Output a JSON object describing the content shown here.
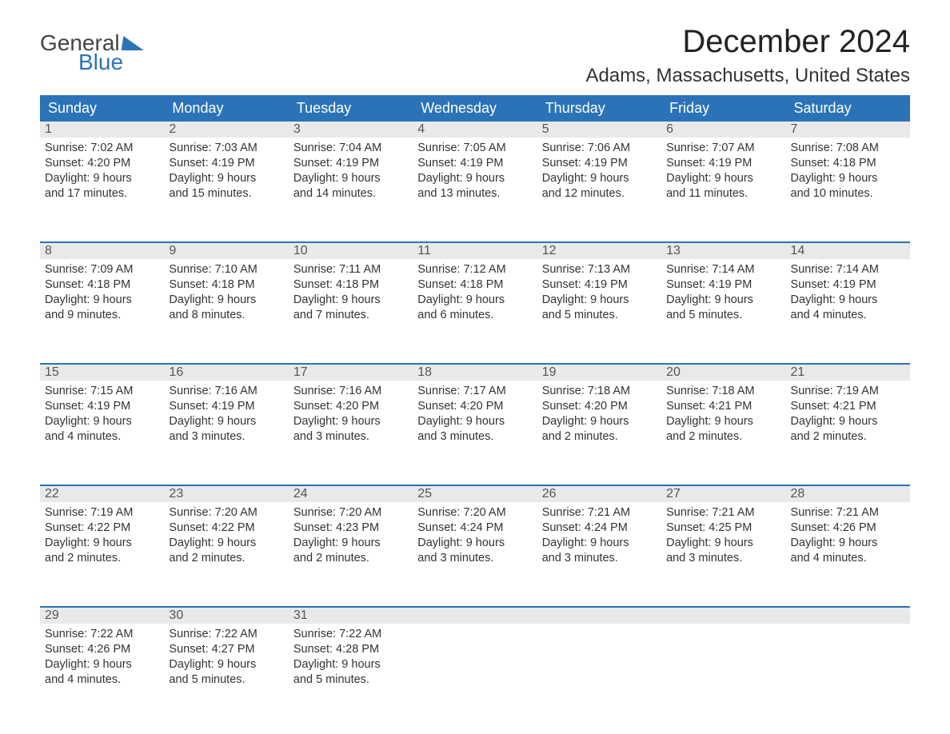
{
  "logo": {
    "text1": "General",
    "text2": "Blue"
  },
  "title": "December 2024",
  "location": "Adams, Massachusetts, United States",
  "day_headers": [
    "Sunday",
    "Monday",
    "Tuesday",
    "Wednesday",
    "Thursday",
    "Friday",
    "Saturday"
  ],
  "colors": {
    "header_bg": "#2b73b8",
    "header_text": "#ffffff",
    "daynum_bg": "#e9e9e9",
    "daynum_text": "#555555",
    "body_text": "#333333",
    "week_divider": "#2b73b8",
    "logo_blue": "#2b73b8",
    "background": "#ffffff"
  },
  "typography": {
    "title_fontsize": 40,
    "location_fontsize": 24,
    "header_fontsize": 18,
    "daynum_fontsize": 16,
    "body_fontsize": 14.5,
    "font_family": "Arial"
  },
  "weeks": [
    [
      {
        "num": "1",
        "sunrise": "Sunrise: 7:02 AM",
        "sunset": "Sunset: 4:20 PM",
        "d1": "Daylight: 9 hours",
        "d2": "and 17 minutes."
      },
      {
        "num": "2",
        "sunrise": "Sunrise: 7:03 AM",
        "sunset": "Sunset: 4:19 PM",
        "d1": "Daylight: 9 hours",
        "d2": "and 15 minutes."
      },
      {
        "num": "3",
        "sunrise": "Sunrise: 7:04 AM",
        "sunset": "Sunset: 4:19 PM",
        "d1": "Daylight: 9 hours",
        "d2": "and 14 minutes."
      },
      {
        "num": "4",
        "sunrise": "Sunrise: 7:05 AM",
        "sunset": "Sunset: 4:19 PM",
        "d1": "Daylight: 9 hours",
        "d2": "and 13 minutes."
      },
      {
        "num": "5",
        "sunrise": "Sunrise: 7:06 AM",
        "sunset": "Sunset: 4:19 PM",
        "d1": "Daylight: 9 hours",
        "d2": "and 12 minutes."
      },
      {
        "num": "6",
        "sunrise": "Sunrise: 7:07 AM",
        "sunset": "Sunset: 4:19 PM",
        "d1": "Daylight: 9 hours",
        "d2": "and 11 minutes."
      },
      {
        "num": "7",
        "sunrise": "Sunrise: 7:08 AM",
        "sunset": "Sunset: 4:18 PM",
        "d1": "Daylight: 9 hours",
        "d2": "and 10 minutes."
      }
    ],
    [
      {
        "num": "8",
        "sunrise": "Sunrise: 7:09 AM",
        "sunset": "Sunset: 4:18 PM",
        "d1": "Daylight: 9 hours",
        "d2": "and 9 minutes."
      },
      {
        "num": "9",
        "sunrise": "Sunrise: 7:10 AM",
        "sunset": "Sunset: 4:18 PM",
        "d1": "Daylight: 9 hours",
        "d2": "and 8 minutes."
      },
      {
        "num": "10",
        "sunrise": "Sunrise: 7:11 AM",
        "sunset": "Sunset: 4:18 PM",
        "d1": "Daylight: 9 hours",
        "d2": "and 7 minutes."
      },
      {
        "num": "11",
        "sunrise": "Sunrise: 7:12 AM",
        "sunset": "Sunset: 4:18 PM",
        "d1": "Daylight: 9 hours",
        "d2": "and 6 minutes."
      },
      {
        "num": "12",
        "sunrise": "Sunrise: 7:13 AM",
        "sunset": "Sunset: 4:19 PM",
        "d1": "Daylight: 9 hours",
        "d2": "and 5 minutes."
      },
      {
        "num": "13",
        "sunrise": "Sunrise: 7:14 AM",
        "sunset": "Sunset: 4:19 PM",
        "d1": "Daylight: 9 hours",
        "d2": "and 5 minutes."
      },
      {
        "num": "14",
        "sunrise": "Sunrise: 7:14 AM",
        "sunset": "Sunset: 4:19 PM",
        "d1": "Daylight: 9 hours",
        "d2": "and 4 minutes."
      }
    ],
    [
      {
        "num": "15",
        "sunrise": "Sunrise: 7:15 AM",
        "sunset": "Sunset: 4:19 PM",
        "d1": "Daylight: 9 hours",
        "d2": "and 4 minutes."
      },
      {
        "num": "16",
        "sunrise": "Sunrise: 7:16 AM",
        "sunset": "Sunset: 4:19 PM",
        "d1": "Daylight: 9 hours",
        "d2": "and 3 minutes."
      },
      {
        "num": "17",
        "sunrise": "Sunrise: 7:16 AM",
        "sunset": "Sunset: 4:20 PM",
        "d1": "Daylight: 9 hours",
        "d2": "and 3 minutes."
      },
      {
        "num": "18",
        "sunrise": "Sunrise: 7:17 AM",
        "sunset": "Sunset: 4:20 PM",
        "d1": "Daylight: 9 hours",
        "d2": "and 3 minutes."
      },
      {
        "num": "19",
        "sunrise": "Sunrise: 7:18 AM",
        "sunset": "Sunset: 4:20 PM",
        "d1": "Daylight: 9 hours",
        "d2": "and 2 minutes."
      },
      {
        "num": "20",
        "sunrise": "Sunrise: 7:18 AM",
        "sunset": "Sunset: 4:21 PM",
        "d1": "Daylight: 9 hours",
        "d2": "and 2 minutes."
      },
      {
        "num": "21",
        "sunrise": "Sunrise: 7:19 AM",
        "sunset": "Sunset: 4:21 PM",
        "d1": "Daylight: 9 hours",
        "d2": "and 2 minutes."
      }
    ],
    [
      {
        "num": "22",
        "sunrise": "Sunrise: 7:19 AM",
        "sunset": "Sunset: 4:22 PM",
        "d1": "Daylight: 9 hours",
        "d2": "and 2 minutes."
      },
      {
        "num": "23",
        "sunrise": "Sunrise: 7:20 AM",
        "sunset": "Sunset: 4:22 PM",
        "d1": "Daylight: 9 hours",
        "d2": "and 2 minutes."
      },
      {
        "num": "24",
        "sunrise": "Sunrise: 7:20 AM",
        "sunset": "Sunset: 4:23 PM",
        "d1": "Daylight: 9 hours",
        "d2": "and 2 minutes."
      },
      {
        "num": "25",
        "sunrise": "Sunrise: 7:20 AM",
        "sunset": "Sunset: 4:24 PM",
        "d1": "Daylight: 9 hours",
        "d2": "and 3 minutes."
      },
      {
        "num": "26",
        "sunrise": "Sunrise: 7:21 AM",
        "sunset": "Sunset: 4:24 PM",
        "d1": "Daylight: 9 hours",
        "d2": "and 3 minutes."
      },
      {
        "num": "27",
        "sunrise": "Sunrise: 7:21 AM",
        "sunset": "Sunset: 4:25 PM",
        "d1": "Daylight: 9 hours",
        "d2": "and 3 minutes."
      },
      {
        "num": "28",
        "sunrise": "Sunrise: 7:21 AM",
        "sunset": "Sunset: 4:26 PM",
        "d1": "Daylight: 9 hours",
        "d2": "and 4 minutes."
      }
    ],
    [
      {
        "num": "29",
        "sunrise": "Sunrise: 7:22 AM",
        "sunset": "Sunset: 4:26 PM",
        "d1": "Daylight: 9 hours",
        "d2": "and 4 minutes."
      },
      {
        "num": "30",
        "sunrise": "Sunrise: 7:22 AM",
        "sunset": "Sunset: 4:27 PM",
        "d1": "Daylight: 9 hours",
        "d2": "and 5 minutes."
      },
      {
        "num": "31",
        "sunrise": "Sunrise: 7:22 AM",
        "sunset": "Sunset: 4:28 PM",
        "d1": "Daylight: 9 hours",
        "d2": "and 5 minutes."
      },
      {
        "num": "",
        "sunrise": "",
        "sunset": "",
        "d1": "",
        "d2": ""
      },
      {
        "num": "",
        "sunrise": "",
        "sunset": "",
        "d1": "",
        "d2": ""
      },
      {
        "num": "",
        "sunrise": "",
        "sunset": "",
        "d1": "",
        "d2": ""
      },
      {
        "num": "",
        "sunrise": "",
        "sunset": "",
        "d1": "",
        "d2": ""
      }
    ]
  ]
}
